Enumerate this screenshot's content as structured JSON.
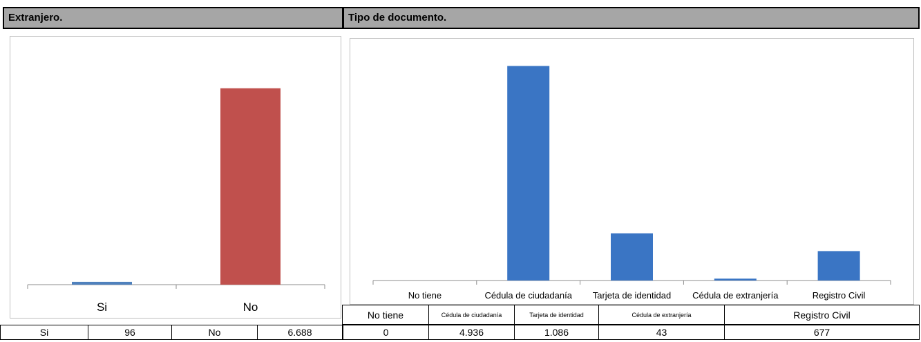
{
  "left": {
    "header": "Extranjero.",
    "colors": [
      "#4f81bd",
      "#c0504d"
    ],
    "table": [
      "Si",
      "96",
      "No",
      "6.688"
    ]
  },
  "right": {
    "header": "Tipo de documento.",
    "bar_color": "#3a75c4",
    "table_header": [
      "No tiene",
      "Cédula de ciudadanía",
      "Tarjeta de identidad",
      "Cédula de extranjería",
      "Registro Civil"
    ],
    "table_values": [
      "0",
      "4.936",
      "1.086",
      "43",
      "677"
    ]
  },
  "chart_data": [
    {
      "type": "bar",
      "title": "",
      "categories": [
        "Si",
        "No"
      ],
      "values": [
        96,
        6688
      ],
      "ylim": [
        0,
        8000
      ],
      "grid": false,
      "legend": "none"
    },
    {
      "type": "bar",
      "title": "",
      "categories": [
        "No tiene",
        "Cédula de ciudadanía",
        "Tarjeta de identidad",
        "Cédula de extranjería",
        "Registro Civil"
      ],
      "values": [
        0,
        4936,
        1086,
        43,
        677
      ],
      "ylim": [
        0,
        5500
      ],
      "grid": false,
      "legend": "none"
    }
  ]
}
